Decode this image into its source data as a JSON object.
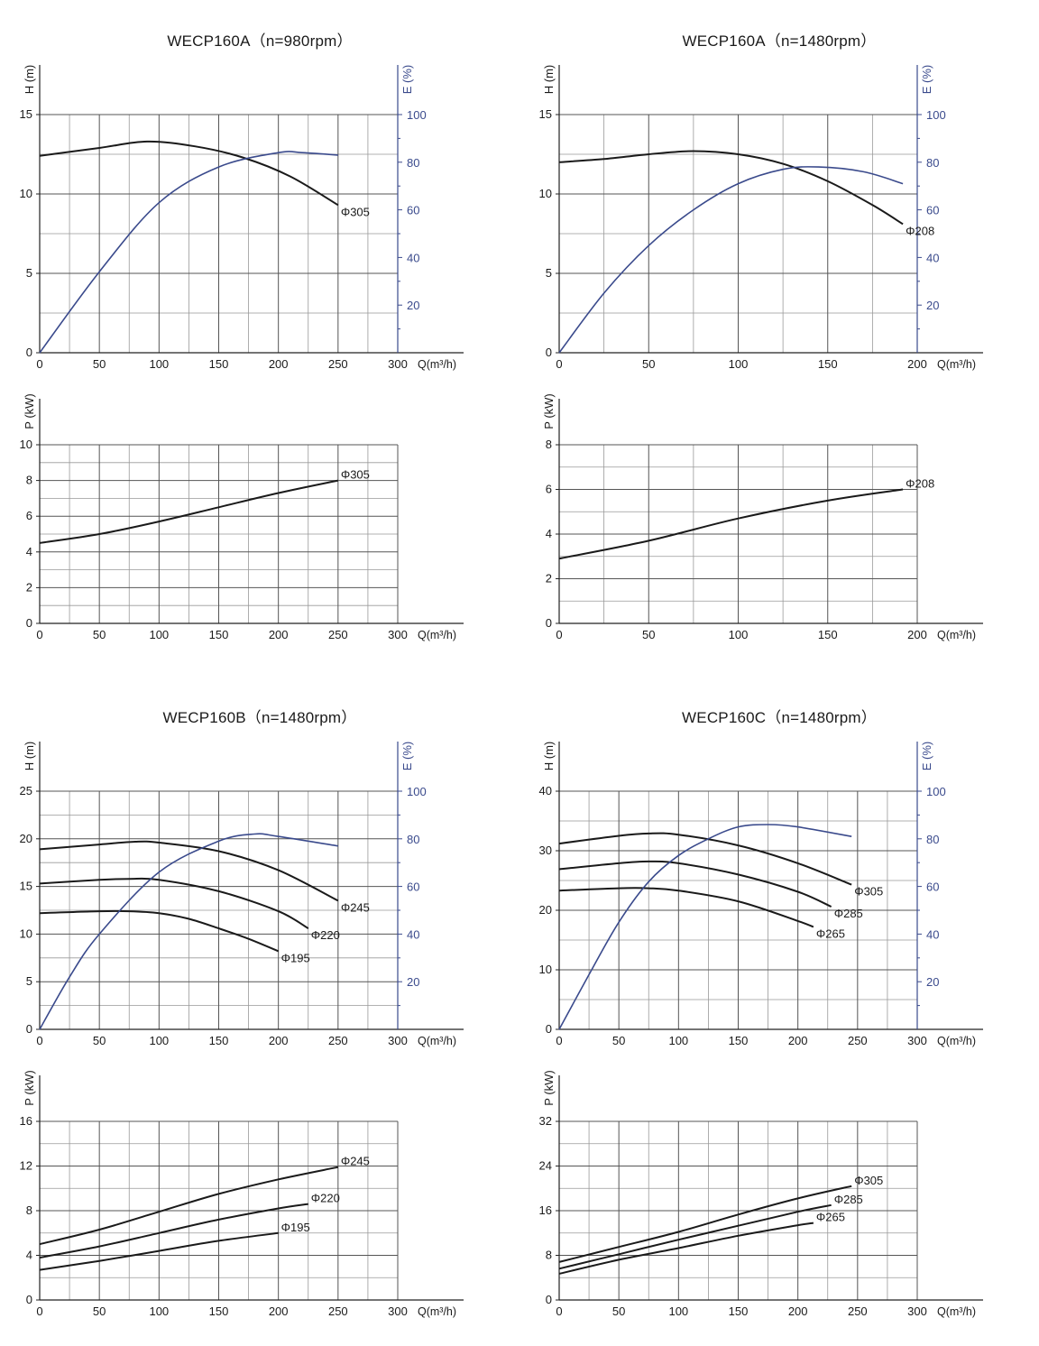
{
  "colors": {
    "efficiency": "#3a4a8c",
    "curves": "#1a1a1a",
    "grid_major": "#555555",
    "grid_minor": "#999999"
  },
  "chart_data": [
    {
      "type": "line",
      "title": "WECP160A（n=980rpm）",
      "head_chart": {
        "xlabel": "Q(m³/h)",
        "ylabel": "H (m)",
        "y2label": "E (%)",
        "xlim": [
          0,
          300
        ],
        "ylim": [
          0,
          15
        ],
        "y2lim": [
          0,
          100
        ],
        "xticks": [
          0,
          50,
          100,
          150,
          200,
          250,
          300
        ],
        "yticks": [
          0,
          5,
          10,
          15
        ],
        "y2ticks": [
          20,
          40,
          60,
          80,
          100
        ],
        "series": [
          {
            "name": "Φ305",
            "axis": "left",
            "x": [
              0,
              50,
              90,
              130,
              170,
              210,
              250
            ],
            "y": [
              12.4,
              12.9,
              13.3,
              13.0,
              12.3,
              11.1,
              9.3
            ]
          },
          {
            "axis": "right",
            "x": [
              0,
              50,
              100,
              150,
              200,
              220,
              250
            ],
            "y": [
              0,
              34,
              63,
              78,
              84,
              84,
              83
            ]
          }
        ]
      },
      "power_chart": {
        "xlabel": "Q(m³/h)",
        "ylabel": "P (kW)",
        "xlim": [
          0,
          300
        ],
        "ylim": [
          0,
          10
        ],
        "xticks": [
          0,
          50,
          100,
          150,
          200,
          250,
          300
        ],
        "yticks": [
          0,
          2,
          4,
          6,
          8,
          10
        ],
        "series": [
          {
            "name": "Φ305",
            "x": [
              0,
              50,
              100,
              150,
              200,
              250
            ],
            "y": [
              4.5,
              5.0,
              5.7,
              6.5,
              7.3,
              8.0
            ]
          }
        ]
      }
    },
    {
      "type": "line",
      "title": "WECP160A（n=1480rpm）",
      "head_chart": {
        "xlabel": "Q(m³/h)",
        "ylabel": "H (m)",
        "y2label": "E (%)",
        "xlim": [
          0,
          200
        ],
        "ylim": [
          0,
          15
        ],
        "y2lim": [
          0,
          100
        ],
        "xticks": [
          0,
          50,
          100,
          150,
          200
        ],
        "yticks": [
          0,
          5,
          10,
          15
        ],
        "y2ticks": [
          20,
          40,
          60,
          80,
          100
        ],
        "series": [
          {
            "name": "Φ208",
            "axis": "left",
            "x": [
              0,
              25,
              50,
              75,
              100,
              125,
              150,
              175,
              192
            ],
            "y": [
              12.0,
              12.2,
              12.5,
              12.7,
              12.5,
              11.9,
              10.8,
              9.3,
              8.1
            ]
          },
          {
            "axis": "right",
            "x": [
              0,
              25,
              50,
              75,
              100,
              125,
              145,
              170,
              192
            ],
            "y": [
              0,
              25,
              45,
              60,
              71,
              77,
              78,
              76,
              71
            ]
          }
        ]
      },
      "power_chart": {
        "xlabel": "Q(m³/h)",
        "ylabel": "P (kW)",
        "xlim": [
          0,
          200
        ],
        "ylim": [
          0,
          8
        ],
        "xticks": [
          0,
          50,
          100,
          150,
          200
        ],
        "yticks": [
          0,
          2,
          4,
          6,
          8
        ],
        "series": [
          {
            "name": "Φ208",
            "x": [
              0,
              50,
              100,
              150,
              192
            ],
            "y": [
              2.9,
              3.7,
              4.7,
              5.5,
              6.0
            ]
          }
        ]
      }
    },
    {
      "type": "line",
      "title": "WECP160B（n=1480rpm）",
      "head_chart": {
        "xlabel": "Q(m³/h)",
        "ylabel": "H (m)",
        "y2label": "E (%)",
        "xlim": [
          0,
          300
        ],
        "ylim": [
          0,
          25
        ],
        "y2lim": [
          0,
          100
        ],
        "xticks": [
          0,
          50,
          100,
          150,
          200,
          250,
          300
        ],
        "yticks": [
          0,
          5,
          10,
          15,
          20,
          25
        ],
        "y2ticks": [
          20,
          40,
          60,
          80,
          100
        ],
        "series": [
          {
            "name": "Φ245",
            "axis": "left",
            "x": [
              0,
              50,
              80,
              100,
              150,
              200,
              250
            ],
            "y": [
              18.9,
              19.4,
              19.7,
              19.6,
              18.7,
              16.7,
              13.5
            ]
          },
          {
            "name": "Φ220",
            "axis": "left",
            "x": [
              0,
              50,
              75,
              100,
              150,
              200,
              225
            ],
            "y": [
              15.3,
              15.7,
              15.8,
              15.7,
              14.5,
              12.4,
              10.6
            ]
          },
          {
            "name": "Φ195",
            "axis": "left",
            "x": [
              0,
              50,
              75,
              100,
              125,
              150,
              175,
              200
            ],
            "y": [
              12.2,
              12.4,
              12.4,
              12.2,
              11.6,
              10.6,
              9.5,
              8.2
            ]
          },
          {
            "axis": "right",
            "x": [
              0,
              25,
              50,
              100,
              150,
              180,
              200,
              250
            ],
            "y": [
              0,
              22,
              40,
              66,
              79,
              82,
              81,
              77
            ]
          }
        ]
      },
      "power_chart": {
        "xlabel": "Q(m³/h)",
        "ylabel": "P (kW)",
        "xlim": [
          0,
          300
        ],
        "ylim": [
          0,
          16
        ],
        "xticks": [
          0,
          50,
          100,
          150,
          200,
          250,
          300
        ],
        "yticks": [
          0,
          4,
          8,
          12,
          16
        ],
        "series": [
          {
            "name": "Φ245",
            "x": [
              0,
              50,
              100,
              150,
              200,
              250
            ],
            "y": [
              5.0,
              6.3,
              7.9,
              9.5,
              10.8,
              11.9
            ]
          },
          {
            "name": "Φ220",
            "x": [
              0,
              50,
              100,
              150,
              200,
              225
            ],
            "y": [
              3.8,
              4.8,
              6.0,
              7.2,
              8.2,
              8.6
            ]
          },
          {
            "name": "Φ195",
            "x": [
              0,
              50,
              100,
              150,
              200
            ],
            "y": [
              2.7,
              3.5,
              4.4,
              5.3,
              6.0
            ]
          }
        ]
      }
    },
    {
      "type": "line",
      "title": "WECP160C（n=1480rpm）",
      "head_chart": {
        "xlabel": "Q(m³/h)",
        "ylabel": "H (m)",
        "y2label": "E (%)",
        "xlim": [
          0,
          300
        ],
        "ylim": [
          0,
          40
        ],
        "y2lim": [
          0,
          100
        ],
        "xticks": [
          0,
          50,
          100,
          150,
          200,
          250,
          300
        ],
        "yticks": [
          0,
          10,
          20,
          30,
          40
        ],
        "y2ticks": [
          20,
          40,
          60,
          80,
          100
        ],
        "series": [
          {
            "name": "Φ305",
            "axis": "left",
            "x": [
              0,
              50,
              75,
              100,
              150,
              200,
              245
            ],
            "y": [
              31.2,
              32.5,
              32.9,
              32.7,
              30.9,
              27.9,
              24.3
            ]
          },
          {
            "name": "Φ285",
            "axis": "left",
            "x": [
              0,
              50,
              75,
              100,
              150,
              200,
              228
            ],
            "y": [
              26.9,
              27.9,
              28.2,
              27.9,
              26.0,
              23.1,
              20.6
            ]
          },
          {
            "name": "Φ265",
            "axis": "left",
            "x": [
              0,
              50,
              75,
              100,
              150,
              200,
              213
            ],
            "y": [
              23.3,
              23.7,
              23.7,
              23.3,
              21.5,
              18.2,
              17.2
            ]
          },
          {
            "axis": "right",
            "x": [
              0,
              25,
              50,
              75,
              100,
              125,
              150,
              175,
              200,
              245
            ],
            "y": [
              0,
              23,
              45,
              62,
              73,
              80,
              85,
              86,
              85,
              81
            ]
          }
        ]
      },
      "power_chart": {
        "xlabel": "Q(m³/h)",
        "ylabel": "P (kW)",
        "xlim": [
          0,
          300
        ],
        "ylim": [
          0,
          32
        ],
        "xticks": [
          0,
          50,
          100,
          150,
          200,
          250,
          300
        ],
        "yticks": [
          0,
          8,
          16,
          24,
          32
        ],
        "series": [
          {
            "name": "Φ305",
            "x": [
              0,
              50,
              100,
              150,
              200,
              245
            ],
            "y": [
              6.8,
              9.5,
              12.2,
              15.3,
              18.2,
              20.4
            ]
          },
          {
            "name": "Φ285",
            "x": [
              0,
              50,
              100,
              150,
              200,
              228
            ],
            "y": [
              5.6,
              8.2,
              10.8,
              13.3,
              15.8,
              17.0
            ]
          },
          {
            "name": "Φ265",
            "x": [
              0,
              50,
              100,
              150,
              200,
              213
            ],
            "y": [
              4.7,
              7.2,
              9.3,
              11.5,
              13.4,
              13.8
            ]
          }
        ]
      }
    }
  ]
}
